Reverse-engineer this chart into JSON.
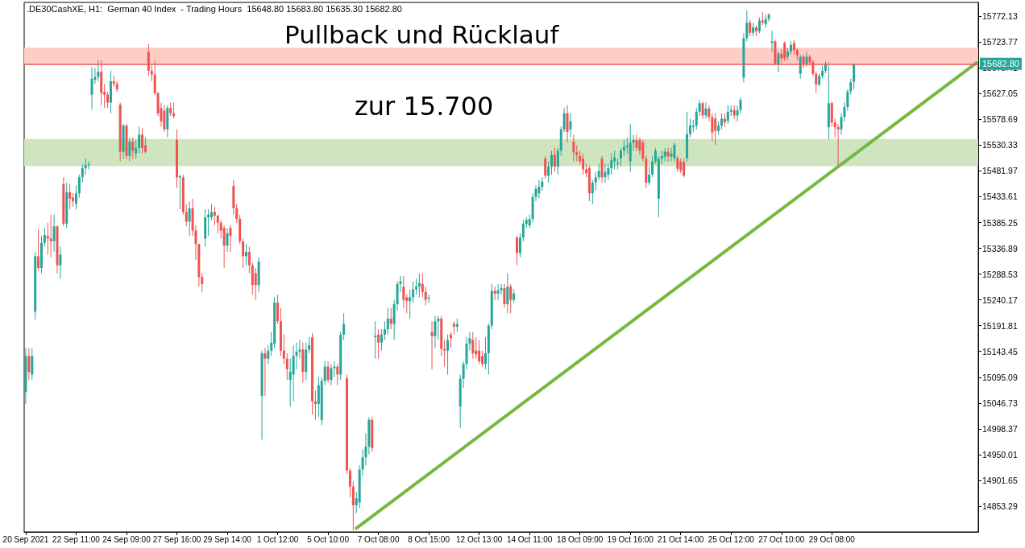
{
  "chart_data": {
    "type": "candlestick",
    "title": "Pullback und Rücklauf",
    "annotations": [
      ".DE30CashXE, H1:  German 40 Index  - Trading Hours  15648.80 15683.80 15635.30 15682.80",
      "zur 15.700"
    ],
    "categories": [
      "20 Sep 2021",
      null,
      null,
      null,
      null,
      null,
      null,
      null,
      null,
      null,
      null,
      null,
      null,
      null,
      null,
      null,
      "22 Sep 11:00",
      null,
      null,
      null,
      null,
      null,
      null,
      null,
      null,
      null,
      null,
      null,
      null,
      null,
      null,
      null,
      "24 Sep 09:00",
      null,
      null,
      null,
      null,
      null,
      null,
      null,
      null,
      null,
      null,
      null,
      null,
      null,
      null,
      null,
      "27 Sep 16:00",
      null,
      null,
      null,
      null,
      null,
      null,
      null,
      null,
      null,
      null,
      null,
      null,
      null,
      null,
      null,
      "29 Sep 14:00",
      null,
      null,
      null,
      null,
      null,
      null,
      null,
      null,
      null,
      null,
      null,
      null,
      null,
      null,
      null,
      "1 Oct 12:00",
      null,
      null,
      null,
      null,
      null,
      null,
      null,
      null,
      null,
      null,
      null,
      null,
      null,
      null,
      null,
      "5 Oct 10:00",
      null,
      null,
      null,
      null,
      null,
      null,
      null,
      null,
      null,
      null,
      null,
      null,
      null,
      null,
      null,
      "7 Oct 08:00",
      null,
      null,
      null,
      null,
      null,
      null,
      null,
      null,
      null,
      null,
      null,
      null,
      null,
      null,
      null,
      "8 Oct 15:00",
      null,
      null,
      null,
      null,
      null,
      null,
      null,
      null,
      null,
      null,
      null,
      null,
      null,
      null,
      null,
      "12 Oct 13:00",
      null,
      null,
      null,
      null,
      null,
      null,
      null,
      null,
      null,
      null,
      null,
      null,
      null,
      null,
      null,
      "14 Oct 11:00",
      null,
      null,
      null,
      null,
      null,
      null,
      null,
      null,
      null,
      null,
      null,
      null,
      null,
      null,
      null,
      "18 Oct 09:00",
      null,
      null,
      null,
      null,
      null,
      null,
      null,
      null,
      null,
      null,
      null,
      null,
      null,
      null,
      null,
      "19 Oct 16:00",
      null,
      null,
      null,
      null,
      null,
      null,
      null,
      null,
      null,
      null,
      null,
      null,
      null,
      null,
      null,
      "21 Oct 14:00",
      null,
      null,
      null,
      null,
      null,
      null,
      null,
      null,
      null,
      null,
      null,
      null,
      null,
      null,
      null,
      "25 Oct 12:00",
      null,
      null,
      null,
      null,
      null,
      null,
      null,
      null,
      null,
      null,
      null,
      null,
      null,
      null,
      null,
      "27 Oct 10:00",
      null,
      null,
      null,
      null,
      null,
      null,
      null,
      null,
      null,
      null,
      null,
      null,
      null,
      null,
      null,
      "29 Oct 08:00",
      null,
      null,
      null,
      null,
      null,
      null,
      null,
      null,
      null,
      null,
      null,
      null,
      null,
      null,
      null,
      null,
      null,
      null,
      null,
      null,
      null,
      null,
      null,
      null,
      null,
      null,
      null,
      null,
      null,
      null,
      null,
      null,
      null,
      null,
      null,
      null,
      null,
      null,
      null,
      null,
      null,
      null,
      null,
      null,
      null,
      null
    ],
    "ohlc": [
      [
        15067,
        15150,
        15045,
        15135
      ],
      [
        15135,
        15150,
        15090,
        15105
      ],
      [
        15100,
        15150,
        15090,
        15135
      ],
      [
        15218,
        15330,
        15203,
        15322
      ],
      [
        15322,
        15372,
        15295,
        15300
      ],
      [
        15300,
        15360,
        15290,
        15347
      ],
      [
        15347,
        15375,
        15340,
        15362
      ],
      [
        15360,
        15385,
        15325,
        15355
      ],
      [
        15355,
        15400,
        15320,
        15350
      ],
      [
        15350,
        15400,
        15330,
        15378
      ],
      [
        15378,
        15380,
        15290,
        15305
      ],
      [
        15305,
        15340,
        15280,
        15325
      ],
      [
        15457,
        15470,
        15378,
        15383
      ],
      [
        15383,
        15460,
        15375,
        15442
      ],
      [
        15442,
        15458,
        15410,
        15430
      ],
      [
        15432,
        15440,
        15415,
        15425
      ],
      [
        15420,
        15455,
        15410,
        15440
      ],
      [
        15440,
        15475,
        15432,
        15470
      ],
      [
        15470,
        15495,
        15460,
        15487
      ],
      [
        15487,
        15505,
        15475,
        15493
      ],
      [
        15493,
        15500,
        15485,
        15495
      ],
      [
        15625,
        15677,
        15597,
        15655
      ],
      [
        15653,
        15675,
        15645,
        15658
      ],
      [
        15658,
        15690,
        15650,
        15668
      ],
      [
        15668,
        15690,
        15605,
        15628
      ],
      [
        15630,
        15645,
        15600,
        15625
      ],
      [
        15625,
        15630,
        15600,
        15610
      ],
      [
        15610,
        15670,
        15590,
        15650
      ],
      [
        15650,
        15660,
        15640,
        15645
      ],
      [
        15645,
        15650,
        15630,
        15635
      ],
      [
        15606,
        15610,
        15500,
        15518
      ],
      [
        15518,
        15570,
        15505,
        15567
      ],
      [
        15567,
        15570,
        15505,
        15510
      ],
      [
        15510,
        15545,
        15500,
        15537
      ],
      [
        15537,
        15545,
        15505,
        15520
      ],
      [
        15515,
        15540,
        15505,
        15525
      ],
      [
        15525,
        15565,
        15515,
        15550
      ],
      [
        15550,
        15562,
        15515,
        15525
      ],
      [
        15530,
        15545,
        15515,
        15518
      ],
      [
        15705,
        15720,
        15660,
        15670
      ],
      [
        15670,
        15680,
        15650,
        15663
      ],
      [
        15663,
        15690,
        15625,
        15628
      ],
      [
        15628,
        15630,
        15585,
        15590
      ],
      [
        15600,
        15610,
        15565,
        15575
      ],
      [
        15595,
        15605,
        15555,
        15560
      ],
      [
        15560,
        15605,
        15545,
        15600
      ],
      [
        15600,
        15610,
        15585,
        15590
      ],
      [
        15590,
        15610,
        15580,
        15585
      ],
      [
        15540,
        15560,
        15450,
        15470
      ],
      [
        15470,
        15475,
        15410,
        15472
      ],
      [
        15470,
        15475,
        15400,
        15405
      ],
      [
        15405,
        15420,
        15378,
        15387
      ],
      [
        15387,
        15425,
        15360,
        15412
      ],
      [
        15412,
        15430,
        15360,
        15370
      ],
      [
        15370,
        15380,
        15315,
        15345
      ],
      [
        15345,
        15345,
        15265,
        15283
      ],
      [
        15283,
        15290,
        15255,
        15270
      ],
      [
        15355,
        15410,
        15340,
        15395
      ],
      [
        15395,
        15410,
        15360,
        15400
      ],
      [
        15395,
        15420,
        15390,
        15405
      ],
      [
        15405,
        15415,
        15380,
        15398
      ],
      [
        15398,
        15400,
        15365,
        15385
      ],
      [
        15385,
        15390,
        15355,
        15370
      ],
      [
        15375,
        15380,
        15300,
        15342
      ],
      [
        15342,
        15375,
        15330,
        15365
      ],
      [
        15375,
        15380,
        15330,
        15360
      ],
      [
        15454,
        15465,
        15400,
        15412
      ],
      [
        15412,
        15420,
        15385,
        15392
      ],
      [
        15392,
        15400,
        15345,
        15350
      ],
      [
        15350,
        15355,
        15300,
        15322
      ],
      [
        15322,
        15345,
        15305,
        15330
      ],
      [
        15330,
        15340,
        15290,
        15305
      ],
      [
        15305,
        15310,
        15250,
        15268
      ],
      [
        15290,
        15300,
        15240,
        15268
      ],
      [
        15268,
        15320,
        15255,
        15312
      ],
      [
        15060,
        15145,
        14978,
        15140
      ],
      [
        15140,
        15150,
        15060,
        15130
      ],
      [
        15130,
        15155,
        15120,
        15145
      ],
      [
        15145,
        15180,
        15135,
        15160
      ],
      [
        15158,
        15245,
        15150,
        15235
      ],
      [
        15235,
        15250,
        15195,
        15200
      ],
      [
        15200,
        15225,
        15135,
        15145
      ],
      [
        15145,
        15175,
        15120,
        15130
      ],
      [
        15130,
        15140,
        15090,
        15110
      ],
      [
        15090,
        15130,
        15040,
        15105
      ],
      [
        15100,
        15155,
        15050,
        15135
      ],
      [
        15135,
        15160,
        15110,
        15143
      ],
      [
        15143,
        15165,
        15130,
        15147
      ],
      [
        15147,
        15160,
        15085,
        15105
      ],
      [
        15105,
        15160,
        15090,
        15147
      ],
      [
        15147,
        15170,
        15140,
        15155
      ],
      [
        15170,
        15178,
        15025,
        15050
      ],
      [
        15050,
        15070,
        15015,
        15045
      ],
      [
        15045,
        15095,
        15020,
        15080
      ],
      [
        15015,
        15095,
        15005,
        15088
      ],
      [
        15088,
        15125,
        15080,
        15115
      ],
      [
        15115,
        15125,
        15085,
        15090
      ],
      [
        15090,
        15120,
        15080,
        15112
      ],
      [
        15112,
        15125,
        15095,
        15115
      ],
      [
        15115,
        15120,
        15080,
        15100
      ],
      [
        15100,
        15180,
        15090,
        15175
      ],
      [
        15175,
        15215,
        15165,
        15195
      ],
      [
        15093,
        15100,
        14915,
        14920
      ],
      [
        14920,
        14925,
        14870,
        14890
      ],
      [
        14890,
        14900,
        14808,
        14855
      ],
      [
        14855,
        14880,
        14840,
        14868
      ],
      [
        14860,
        14930,
        14850,
        14922
      ],
      [
        14922,
        14960,
        14910,
        14945
      ],
      [
        14945,
        14990,
        14930,
        14965
      ],
      [
        14965,
        15020,
        14950,
        15015
      ],
      [
        15015,
        15020,
        14955,
        14962
      ],
      [
        15170,
        15200,
        15130,
        15173
      ],
      [
        15175,
        15185,
        15130,
        15160
      ],
      [
        15160,
        15185,
        15145,
        15175
      ],
      [
        15175,
        15200,
        15165,
        15185
      ],
      [
        15185,
        15225,
        15175,
        15205
      ],
      [
        15205,
        15225,
        15185,
        15195
      ],
      [
        15195,
        15240,
        15165,
        15232
      ],
      [
        15232,
        15275,
        15220,
        15270
      ],
      [
        15270,
        15285,
        15255,
        15275
      ],
      [
        15265,
        15285,
        15225,
        15240
      ],
      [
        15245,
        15250,
        15215,
        15238
      ],
      [
        15238,
        15260,
        15205,
        15245
      ],
      [
        15245,
        15275,
        15235,
        15260
      ],
      [
        15260,
        15280,
        15250,
        15265
      ],
      [
        15265,
        15290,
        15245,
        15272
      ],
      [
        15270,
        15290,
        15245,
        15255
      ],
      [
        15255,
        15265,
        15230,
        15240
      ],
      [
        15243,
        15250,
        15235,
        15245
      ],
      [
        15180,
        15200,
        15110,
        15172
      ],
      [
        15172,
        15210,
        15150,
        15200
      ],
      [
        15200,
        15210,
        15165,
        15205
      ],
      [
        15205,
        15210,
        15135,
        15148
      ],
      [
        15148,
        15165,
        15115,
        15145
      ],
      [
        15145,
        15175,
        15100,
        15165
      ],
      [
        15175,
        15180,
        15150,
        15168
      ],
      [
        15195,
        15200,
        15175,
        15190
      ],
      [
        15190,
        15205,
        15180,
        15195
      ],
      [
        15040,
        15100,
        15000,
        15092
      ],
      [
        15092,
        15125,
        15075,
        15120
      ],
      [
        15120,
        15170,
        15110,
        15158
      ],
      [
        15158,
        15180,
        15145,
        15168
      ],
      [
        15165,
        15180,
        15130,
        15140
      ],
      [
        15145,
        15170,
        15130,
        15138
      ],
      [
        15145,
        15165,
        15120,
        15125
      ],
      [
        15135,
        15145,
        15115,
        15120
      ],
      [
        15120,
        15170,
        15110,
        15140
      ],
      [
        15140,
        15195,
        15100,
        15192
      ],
      [
        15192,
        15270,
        15185,
        15257
      ],
      [
        15257,
        15265,
        15240,
        15252
      ],
      [
        15252,
        15270,
        15240,
        15258
      ],
      [
        15258,
        15270,
        15250,
        15262
      ],
      [
        15262,
        15270,
        15225,
        15232
      ],
      [
        15232,
        15290,
        15215,
        15265
      ],
      [
        15265,
        15270,
        15215,
        15240
      ],
      [
        15240,
        15260,
        15235,
        15252
      ],
      [
        15357,
        15360,
        15305,
        15328
      ],
      [
        15328,
        15365,
        15320,
        15357
      ],
      [
        15357,
        15390,
        15350,
        15383
      ],
      [
        15383,
        15395,
        15375,
        15390
      ],
      [
        15380,
        15400,
        15375,
        15392
      ],
      [
        15392,
        15440,
        15385,
        15433
      ],
      [
        15433,
        15455,
        15425,
        15448
      ],
      [
        15440,
        15465,
        15430,
        15452
      ],
      [
        15452,
        15470,
        15445,
        15462
      ],
      [
        15505,
        15510,
        15468,
        15473
      ],
      [
        15473,
        15500,
        15460,
        15490
      ],
      [
        15490,
        15520,
        15475,
        15512
      ],
      [
        15512,
        15525,
        15480,
        15490
      ],
      [
        15490,
        15525,
        15475,
        15520
      ],
      [
        15520,
        15565,
        15510,
        15560
      ],
      [
        15560,
        15600,
        15555,
        15590
      ],
      [
        15590,
        15605,
        15535,
        15555
      ],
      [
        15560,
        15590,
        15545,
        15575
      ],
      [
        15537,
        15550,
        15500,
        15517
      ],
      [
        15517,
        15530,
        15500,
        15512
      ],
      [
        15510,
        15520,
        15495,
        15500
      ],
      [
        15505,
        15515,
        15475,
        15485
      ],
      [
        15485,
        15495,
        15470,
        15478
      ],
      [
        15487,
        15492,
        15425,
        15440
      ],
      [
        15440,
        15465,
        15420,
        15460
      ],
      [
        15460,
        15480,
        15445,
        15470
      ],
      [
        15470,
        15495,
        15465,
        15482
      ],
      [
        15505,
        15510,
        15460,
        15470
      ],
      [
        15470,
        15495,
        15460,
        15480
      ],
      [
        15475,
        15495,
        15465,
        15487
      ],
      [
        15487,
        15515,
        15475,
        15502
      ],
      [
        15500,
        15520,
        15485,
        15507
      ],
      [
        15495,
        15505,
        15485,
        15497
      ],
      [
        15505,
        15525,
        15490,
        15520
      ],
      [
        15520,
        15540,
        15510,
        15527
      ],
      [
        15527,
        15545,
        15515,
        15530
      ],
      [
        15500,
        15570,
        15480,
        15535
      ],
      [
        15535,
        15550,
        15520,
        15540
      ],
      [
        15540,
        15550,
        15520,
        15525
      ],
      [
        15540,
        15545,
        15512,
        15520
      ],
      [
        15535,
        15540,
        15500,
        15505
      ],
      [
        15505,
        15510,
        15450,
        15460
      ],
      [
        15460,
        15490,
        15455,
        15475
      ],
      [
        15475,
        15510,
        15470,
        15500
      ],
      [
        15500,
        15525,
        15495,
        15520
      ],
      [
        15430,
        15510,
        15395,
        15505
      ],
      [
        15505,
        15520,
        15495,
        15510
      ],
      [
        15509,
        15525,
        15500,
        15518
      ],
      [
        15518,
        15525,
        15500,
        15509
      ],
      [
        15509,
        15525,
        15500,
        15515
      ],
      [
        15506,
        15535,
        15500,
        15531
      ],
      [
        15506,
        15510,
        15480,
        15486
      ],
      [
        15499,
        15505,
        15478,
        15483
      ],
      [
        15499,
        15505,
        15470,
        15473
      ],
      [
        15506,
        15593,
        15499,
        15551
      ],
      [
        15551,
        15580,
        15545,
        15567
      ],
      [
        15564,
        15578,
        15555,
        15567
      ],
      [
        15567,
        15600,
        15560,
        15593
      ],
      [
        15593,
        15615,
        15585,
        15609
      ],
      [
        15609,
        15612,
        15580,
        15586
      ],
      [
        15586,
        15610,
        15580,
        15599
      ],
      [
        15599,
        15605,
        15575,
        15583
      ],
      [
        15583,
        15590,
        15538,
        15554
      ],
      [
        15580,
        15590,
        15531,
        15557
      ],
      [
        15557,
        15575,
        15550,
        15567
      ],
      [
        15567,
        15590,
        15560,
        15580
      ],
      [
        15580,
        15590,
        15565,
        15573
      ],
      [
        15576,
        15605,
        15570,
        15593
      ],
      [
        15593,
        15605,
        15585,
        15596
      ],
      [
        15596,
        15605,
        15580,
        15586
      ],
      [
        15586,
        15605,
        15575,
        15596
      ],
      [
        15596,
        15620,
        15590,
        15615
      ],
      [
        15657,
        15740,
        15648,
        15731
      ],
      [
        15731,
        15783,
        15725,
        15760
      ],
      [
        15760,
        15765,
        15735,
        15741
      ],
      [
        15741,
        15760,
        15735,
        15751
      ],
      [
        15751,
        15755,
        15735,
        15744
      ],
      [
        15744,
        15770,
        15740,
        15764
      ],
      [
        15764,
        15780,
        15755,
        15760
      ],
      [
        15757,
        15775,
        15750,
        15767
      ],
      [
        15767,
        15778,
        15762,
        15775
      ],
      [
        15722,
        15745,
        15706,
        15725
      ],
      [
        15725,
        15728,
        15680,
        15683
      ],
      [
        15683,
        15706,
        15667,
        15702
      ],
      [
        15702,
        15710,
        15685,
        15693
      ],
      [
        15722,
        15725,
        15688,
        15693
      ],
      [
        15696,
        15712,
        15690,
        15706
      ],
      [
        15706,
        15725,
        15700,
        15718
      ],
      [
        15722,
        15728,
        15700,
        15709
      ],
      [
        15709,
        15712,
        15690,
        15699
      ],
      [
        15664,
        15700,
        15655,
        15696
      ],
      [
        15696,
        15700,
        15675,
        15683
      ],
      [
        15683,
        15705,
        15678,
        15696
      ],
      [
        15696,
        15700,
        15680,
        15686
      ],
      [
        15686,
        15690,
        15660,
        15664
      ],
      [
        15664,
        15668,
        15628,
        15644
      ],
      [
        15644,
        15665,
        15640,
        15660
      ],
      [
        15660,
        15680,
        15655,
        15670
      ],
      [
        15670,
        15688,
        15665,
        15683
      ],
      [
        15564,
        15686,
        15541,
        15609
      ],
      [
        15609,
        15612,
        15565,
        15573
      ],
      [
        15573,
        15580,
        15545,
        15564
      ],
      [
        15564,
        15570,
        15493,
        15560
      ],
      [
        15560,
        15590,
        15550,
        15583
      ],
      [
        15583,
        15610,
        15575,
        15602
      ],
      [
        15602,
        15635,
        15595,
        15631
      ],
      [
        15631,
        15655,
        15625,
        15648
      ],
      [
        15648.8,
        15683.8,
        15635.3,
        15682.8
      ],
      null,
      null,
      null,
      null,
      null,
      null,
      null,
      null,
      null,
      null,
      null,
      null,
      null,
      null,
      null,
      null,
      null,
      null,
      null,
      null,
      null,
      null,
      null,
      null,
      null,
      null,
      null,
      null,
      null,
      null,
      null,
      null,
      null,
      null,
      null,
      null,
      null,
      null,
      null
    ],
    "series": [
      {
        "type": "line",
        "color": "#76b843",
        "values": [
          null,
          null,
          null,
          null,
          null,
          null,
          null,
          null,
          null,
          null,
          null,
          null,
          null,
          null,
          null,
          null,
          null,
          null,
          null,
          null,
          null,
          null,
          null,
          null,
          null,
          null,
          null,
          null,
          null,
          null,
          null,
          null,
          null,
          null,
          null,
          null,
          null,
          null,
          null,
          null,
          null,
          null,
          null,
          null,
          null,
          null,
          null,
          null,
          null,
          null,
          null,
          null,
          null,
          null,
          null,
          null,
          null,
          null,
          null,
          null,
          null,
          null,
          null,
          null,
          null,
          null,
          null,
          null,
          null,
          null,
          null,
          null,
          null,
          null,
          null,
          null,
          null,
          null,
          null,
          null,
          null,
          null,
          null,
          null,
          null,
          null,
          null,
          null,
          null,
          null,
          null,
          null,
          null,
          null,
          null,
          null,
          null,
          null,
          null,
          null,
          null,
          null,
          null,
          null,
          null,
          14812,
          null,
          null,
          null,
          null,
          null,
          null,
          null,
          null,
          null,
          null,
          null,
          null,
          null,
          null,
          null,
          null,
          null,
          null,
          null,
          null,
          null,
          null,
          null,
          null,
          null,
          null,
          null,
          null,
          null,
          null,
          null,
          null,
          null,
          null,
          null,
          null,
          null,
          null,
          null,
          null,
          null,
          null,
          null,
          null,
          null,
          null,
          null,
          null,
          null,
          null,
          null,
          null,
          null,
          null,
          null,
          null,
          null,
          null,
          null,
          null,
          null,
          null,
          null,
          null,
          null,
          null,
          null,
          null,
          null,
          null,
          null,
          null,
          null,
          null,
          null,
          null,
          null,
          null,
          null,
          null,
          null,
          null,
          null,
          null,
          null,
          null,
          null,
          null,
          null,
          null,
          null,
          null,
          null,
          null,
          null,
          null,
          null,
          null,
          null,
          null,
          null,
          null,
          null,
          null,
          null,
          null,
          null,
          null,
          null,
          null,
          null,
          null,
          null,
          null,
          null,
          null,
          null,
          null,
          null,
          null,
          null,
          null,
          null,
          null,
          null,
          null,
          null,
          null,
          null,
          null,
          null,
          null,
          null,
          null,
          null,
          null,
          null,
          null,
          null,
          null,
          null,
          null,
          null,
          null,
          null,
          null,
          null,
          null,
          null,
          null,
          null,
          null,
          null,
          null,
          null,
          null,
          null,
          null,
          null,
          null,
          null,
          null,
          null,
          null,
          null,
          null,
          null,
          null,
          null,
          null,
          null,
          null,
          null,
          null,
          null,
          null,
          null,
          null,
          null,
          null,
          null,
          null,
          null,
          null,
          null,
          null,
          null,
          null,
          null,
          null,
          null,
          null,
          null,
          null,
          null,
          null,
          15685
        ]
      }
    ],
    "ylim": [
      14805,
      15798
    ],
    "yticks": [
      14853.29,
      14901.65,
      14950.01,
      14998.37,
      15046.73,
      15095.09,
      15143.45,
      15191.81,
      15240.17,
      15288.53,
      15336.89,
      15385.25,
      15433.61,
      15481.97,
      15530.33,
      15578.69,
      15627.05,
      15675.41,
      15723.77,
      15772.13
    ],
    "ref_lines": [
      {
        "axis": "y",
        "value": 15682.8,
        "label": "15682.80",
        "color": "#ef5350"
      }
    ],
    "bands": [
      {
        "axis": "y",
        "from": 15683,
        "to": 15713,
        "color": "#ffcdc4"
      },
      {
        "axis": "y",
        "from": 15491,
        "to": 15542,
        "color": "#cfe5bf"
      }
    ],
    "grid": false
  }
}
